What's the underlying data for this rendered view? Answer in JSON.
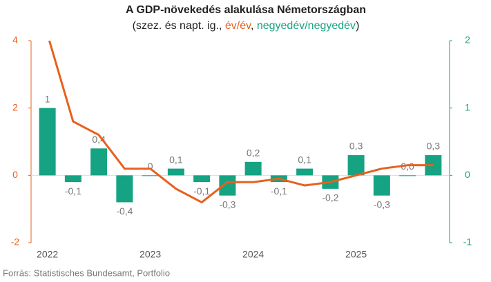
{
  "chart_data": {
    "type": "bar-line",
    "title": "A GDP-növekedés alakulása Németországban",
    "subtitle_parts": [
      "(szez. és napt. ig., ",
      "év/év",
      ", ",
      "negyedév/negyedév",
      ")"
    ],
    "source": "Forrás: Statistisches Bundesamt, Portfolio",
    "categories": [
      "2022",
      null,
      null,
      null,
      "2023",
      null,
      null,
      null,
      "2024",
      null,
      null,
      null,
      "2025",
      null,
      null,
      null
    ],
    "series": [
      {
        "name": "negyedév/negyedév",
        "type": "bar",
        "axis": "y2",
        "color": "#16a383",
        "values": [
          1,
          -0.1,
          0.4,
          -0.4,
          0,
          0.1,
          -0.1,
          -0.3,
          0.2,
          -0.1,
          0.1,
          -0.2,
          0.3,
          -0.3,
          0.0,
          0.3
        ],
        "value_labels": [
          "1",
          "-0,1",
          "0,4",
          "-0,4",
          "0",
          "0,1",
          "-0,1",
          "-0,3",
          "0,2",
          "-0,1",
          "0,1",
          "-0,2",
          "0,3",
          "-0,3",
          "0,0",
          "0,3"
        ]
      },
      {
        "name": "év/év",
        "type": "line",
        "axis": "y",
        "color": "#e8601c",
        "values": [
          4.2,
          1.6,
          1.2,
          0.2,
          0.2,
          -0.4,
          -0.8,
          -0.2,
          -0.2,
          -0.1,
          -0.3,
          -0.2,
          0,
          0.2,
          0.3,
          0.3
        ]
      }
    ],
    "ylim": [
      -2,
      4
    ],
    "yticks": [
      -2,
      0,
      2,
      4
    ],
    "y_color": "#e8601c",
    "y2lim": [
      -1,
      2
    ],
    "y2ticks": [
      -1,
      0,
      1,
      2
    ],
    "y2_color": "#16a383",
    "label_color": "#777777"
  }
}
